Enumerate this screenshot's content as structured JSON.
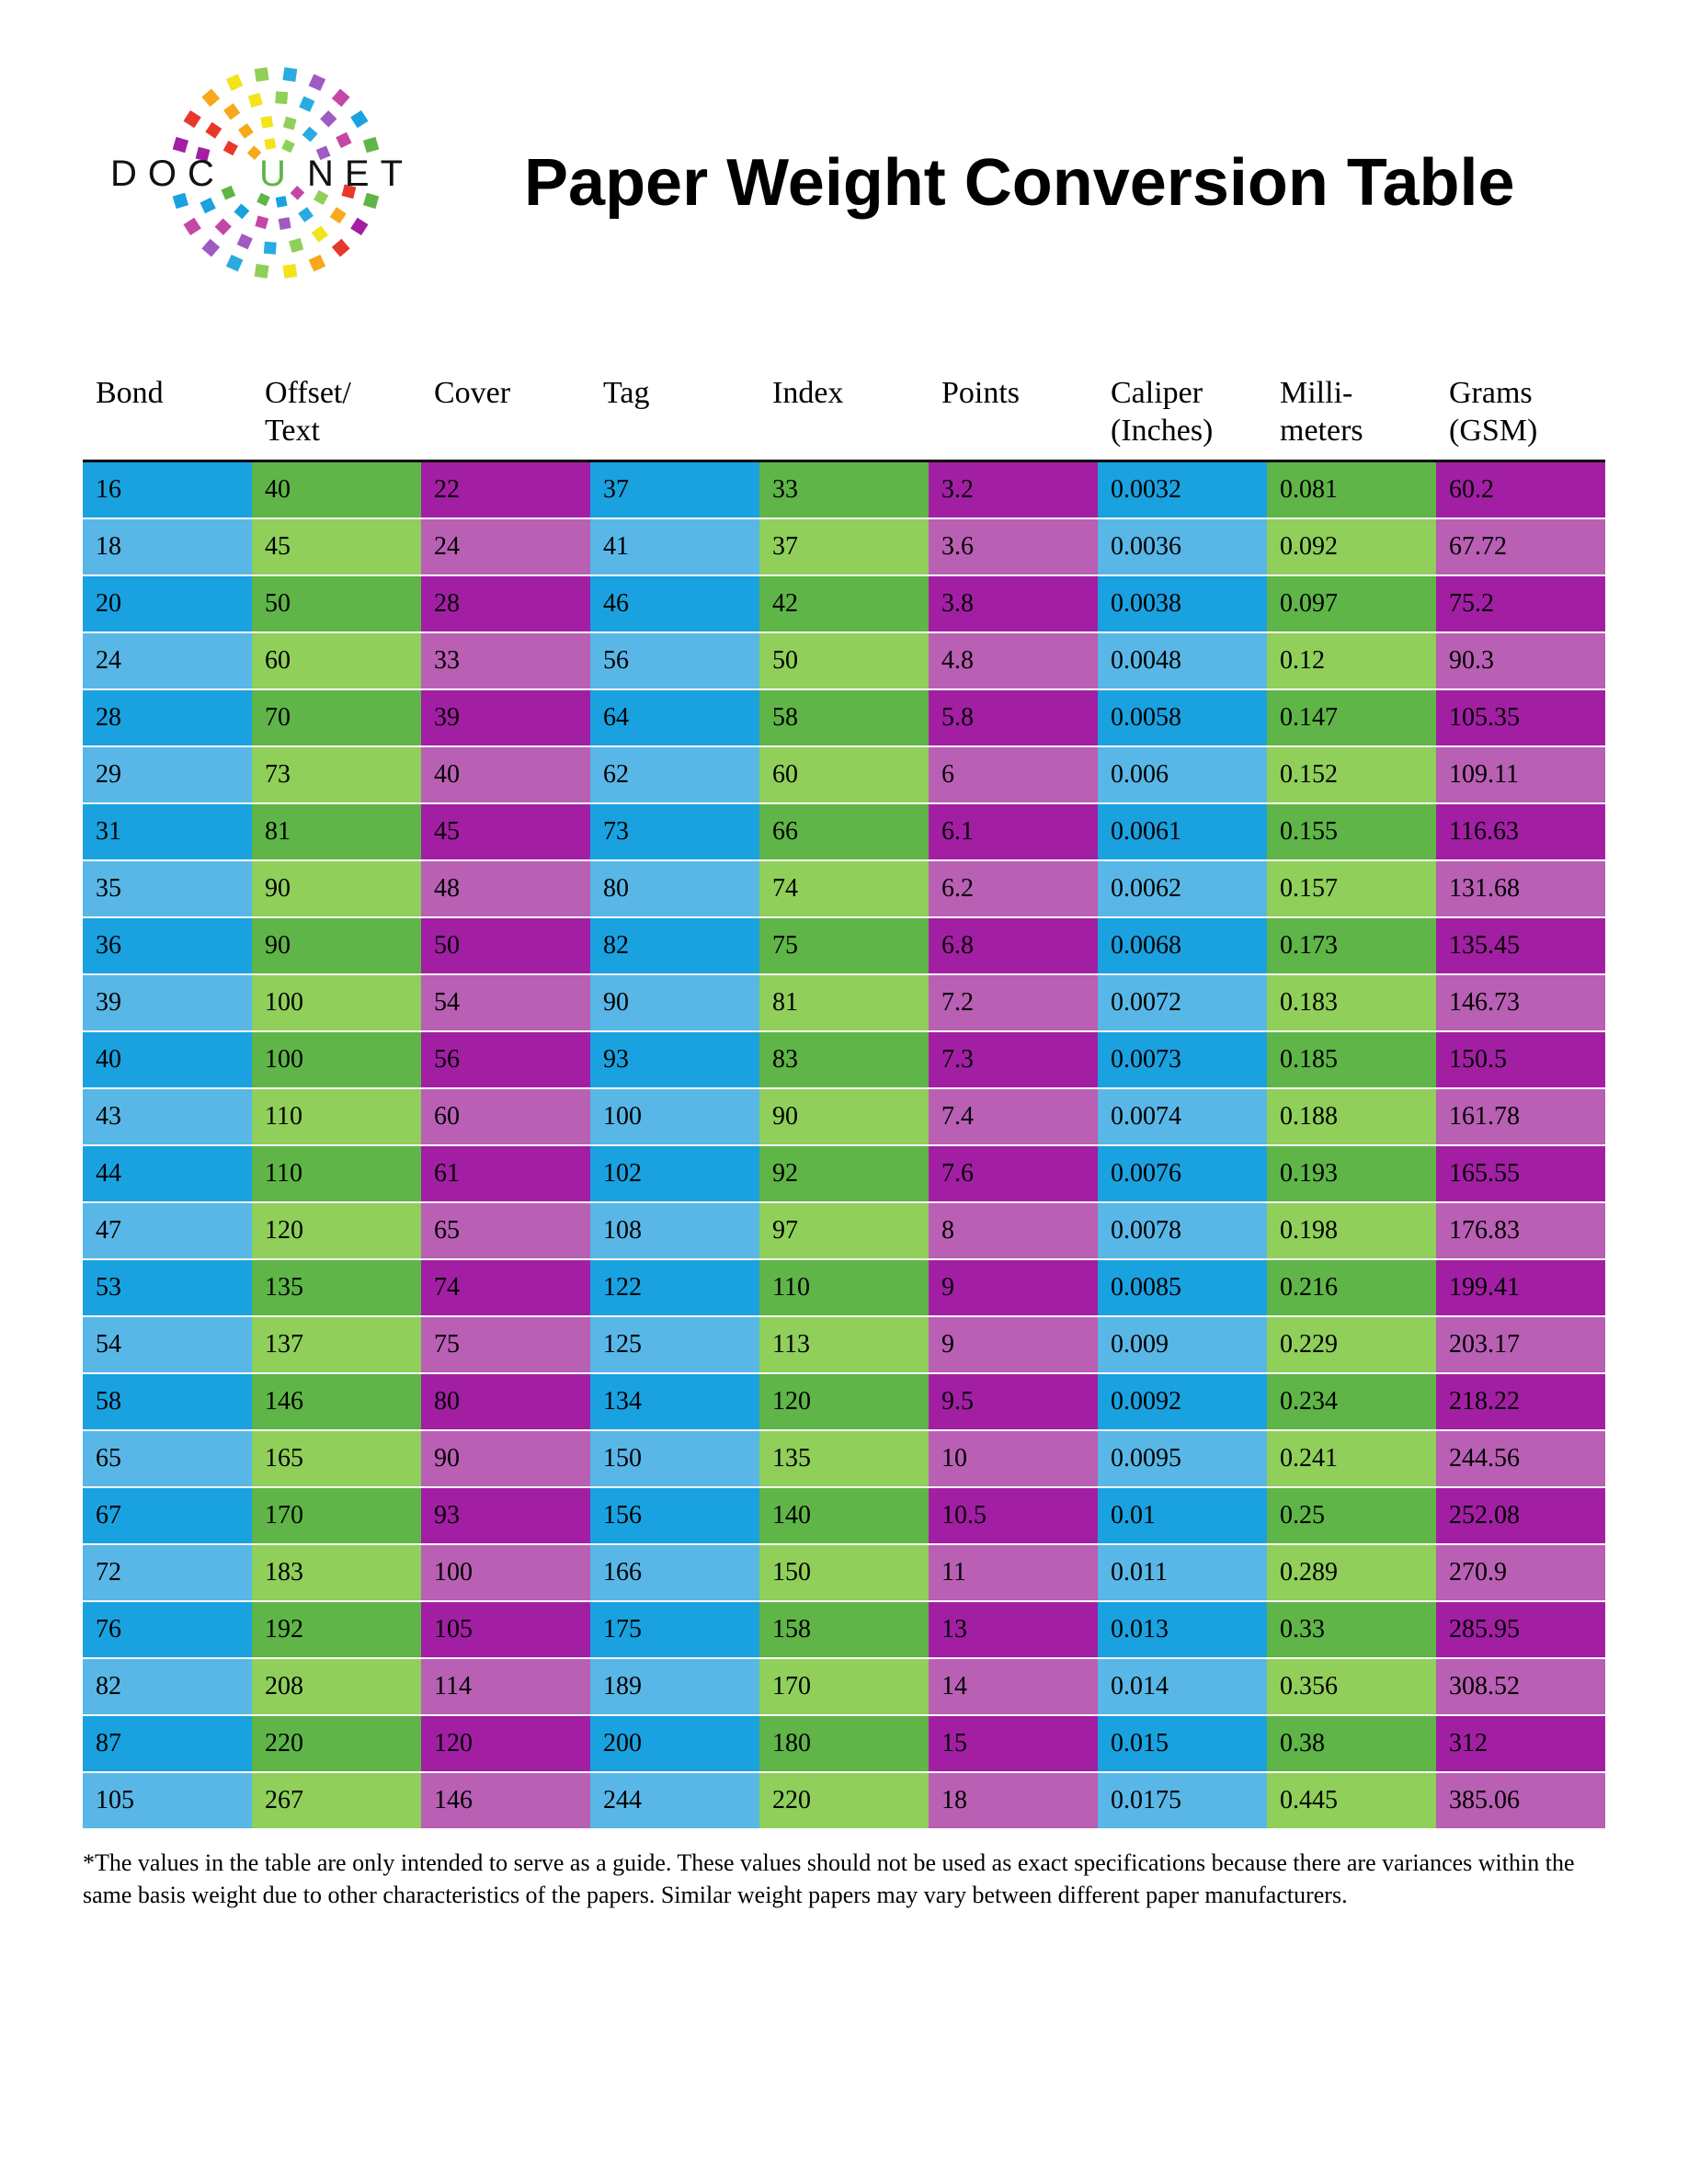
{
  "logo": {
    "brand_word_left": "DOC",
    "brand_word_mid": "U",
    "brand_word_right": "NET",
    "text_color": "#111111",
    "u_color": "#5fb547",
    "ring_colors": [
      "#1aa1e0",
      "#5fb547",
      "#a21fa3",
      "#e7382c",
      "#f7a81b",
      "#f3e31a",
      "#8fcf5a",
      "#29abe2",
      "#a05bc3",
      "#c447a8"
    ]
  },
  "title": "Paper Weight\nConversion Table",
  "title_fontsize": 72,
  "table": {
    "header_fontsize": 34,
    "cell_fontsize": 28,
    "border_color": "#000000",
    "row_gap_color": "#ffffff",
    "columns": [
      "Bond",
      "Offset/\nText",
      "Cover",
      "Tag",
      "Index",
      "Points",
      "Caliper\n(Inches)",
      "Milli-\nmeters",
      "Grams\n(GSM)"
    ],
    "column_color_pairs": [
      [
        "#1aa1e0",
        "#58b7e6"
      ],
      [
        "#5fb547",
        "#8fcf5a"
      ],
      [
        "#a21fa3",
        "#b95fb4"
      ],
      [
        "#1aa1e0",
        "#58b7e6"
      ],
      [
        "#5fb547",
        "#8fcf5a"
      ],
      [
        "#a21fa3",
        "#b95fb4"
      ],
      [
        "#1aa1e0",
        "#58b7e6"
      ],
      [
        "#5fb547",
        "#8fcf5a"
      ],
      [
        "#a21fa3",
        "#b95fb4"
      ]
    ],
    "rows": [
      [
        "16",
        "40",
        "22",
        "37",
        "33",
        "3.2",
        "0.0032",
        "0.081",
        "60.2"
      ],
      [
        "18",
        "45",
        "24",
        "41",
        "37",
        "3.6",
        "0.0036",
        "0.092",
        "67.72"
      ],
      [
        "20",
        "50",
        "28",
        "46",
        "42",
        "3.8",
        "0.0038",
        "0.097",
        "75.2"
      ],
      [
        "24",
        "60",
        "33",
        "56",
        "50",
        "4.8",
        "0.0048",
        "0.12",
        "90.3"
      ],
      [
        "28",
        "70",
        "39",
        "64",
        "58",
        "5.8",
        "0.0058",
        "0.147",
        "105.35"
      ],
      [
        "29",
        "73",
        "40",
        "62",
        "60",
        "6",
        "0.006",
        "0.152",
        "109.11"
      ],
      [
        "31",
        "81",
        "45",
        "73",
        "66",
        "6.1",
        "0.0061",
        "0.155",
        "116.63"
      ],
      [
        "35",
        "90",
        "48",
        "80",
        "74",
        "6.2",
        "0.0062",
        "0.157",
        "131.68"
      ],
      [
        "36",
        "90",
        "50",
        "82",
        "75",
        "6.8",
        "0.0068",
        "0.173",
        "135.45"
      ],
      [
        "39",
        "100",
        "54",
        "90",
        "81",
        "7.2",
        "0.0072",
        "0.183",
        "146.73"
      ],
      [
        "40",
        "100",
        "56",
        "93",
        "83",
        "7.3",
        "0.0073",
        "0.185",
        "150.5"
      ],
      [
        "43",
        "110",
        "60",
        "100",
        "90",
        "7.4",
        "0.0074",
        "0.188",
        "161.78"
      ],
      [
        "44",
        "110",
        "61",
        "102",
        "92",
        "7.6",
        "0.0076",
        "0.193",
        "165.55"
      ],
      [
        "47",
        "120",
        "65",
        "108",
        "97",
        "8",
        "0.0078",
        "0.198",
        "176.83"
      ],
      [
        "53",
        "135",
        "74",
        "122",
        "110",
        "9",
        "0.0085",
        "0.216",
        "199.41"
      ],
      [
        "54",
        "137",
        "75",
        "125",
        "113",
        "9",
        "0.009",
        "0.229",
        "203.17"
      ],
      [
        "58",
        "146",
        "80",
        "134",
        "120",
        "9.5",
        "0.0092",
        "0.234",
        "218.22"
      ],
      [
        "65",
        "165",
        "90",
        "150",
        "135",
        "10",
        "0.0095",
        "0.241",
        "244.56"
      ],
      [
        "67",
        "170",
        "93",
        "156",
        "140",
        "10.5",
        "0.01",
        "0.25",
        "252.08"
      ],
      [
        "72",
        "183",
        "100",
        "166",
        "150",
        "11",
        "0.011",
        "0.289",
        "270.9"
      ],
      [
        "76",
        "192",
        "105",
        "175",
        "158",
        "13",
        "0.013",
        "0.33",
        "285.95"
      ],
      [
        "82",
        "208",
        "114",
        "189",
        "170",
        "14",
        "0.014",
        "0.356",
        "308.52"
      ],
      [
        "87",
        "220",
        "120",
        "200",
        "180",
        "15",
        "0.015",
        "0.38",
        "312"
      ],
      [
        "105",
        "267",
        "146",
        "244",
        "220",
        "18",
        "0.0175",
        "0.445",
        "385.06"
      ]
    ]
  },
  "footnote": "*The values in the table are only intended to serve as a guide. These values should not be used as exact specifications because there are variances within the same basis weight due to other characteristics of the papers. Similar weight papers may vary between different paper manufacturers."
}
